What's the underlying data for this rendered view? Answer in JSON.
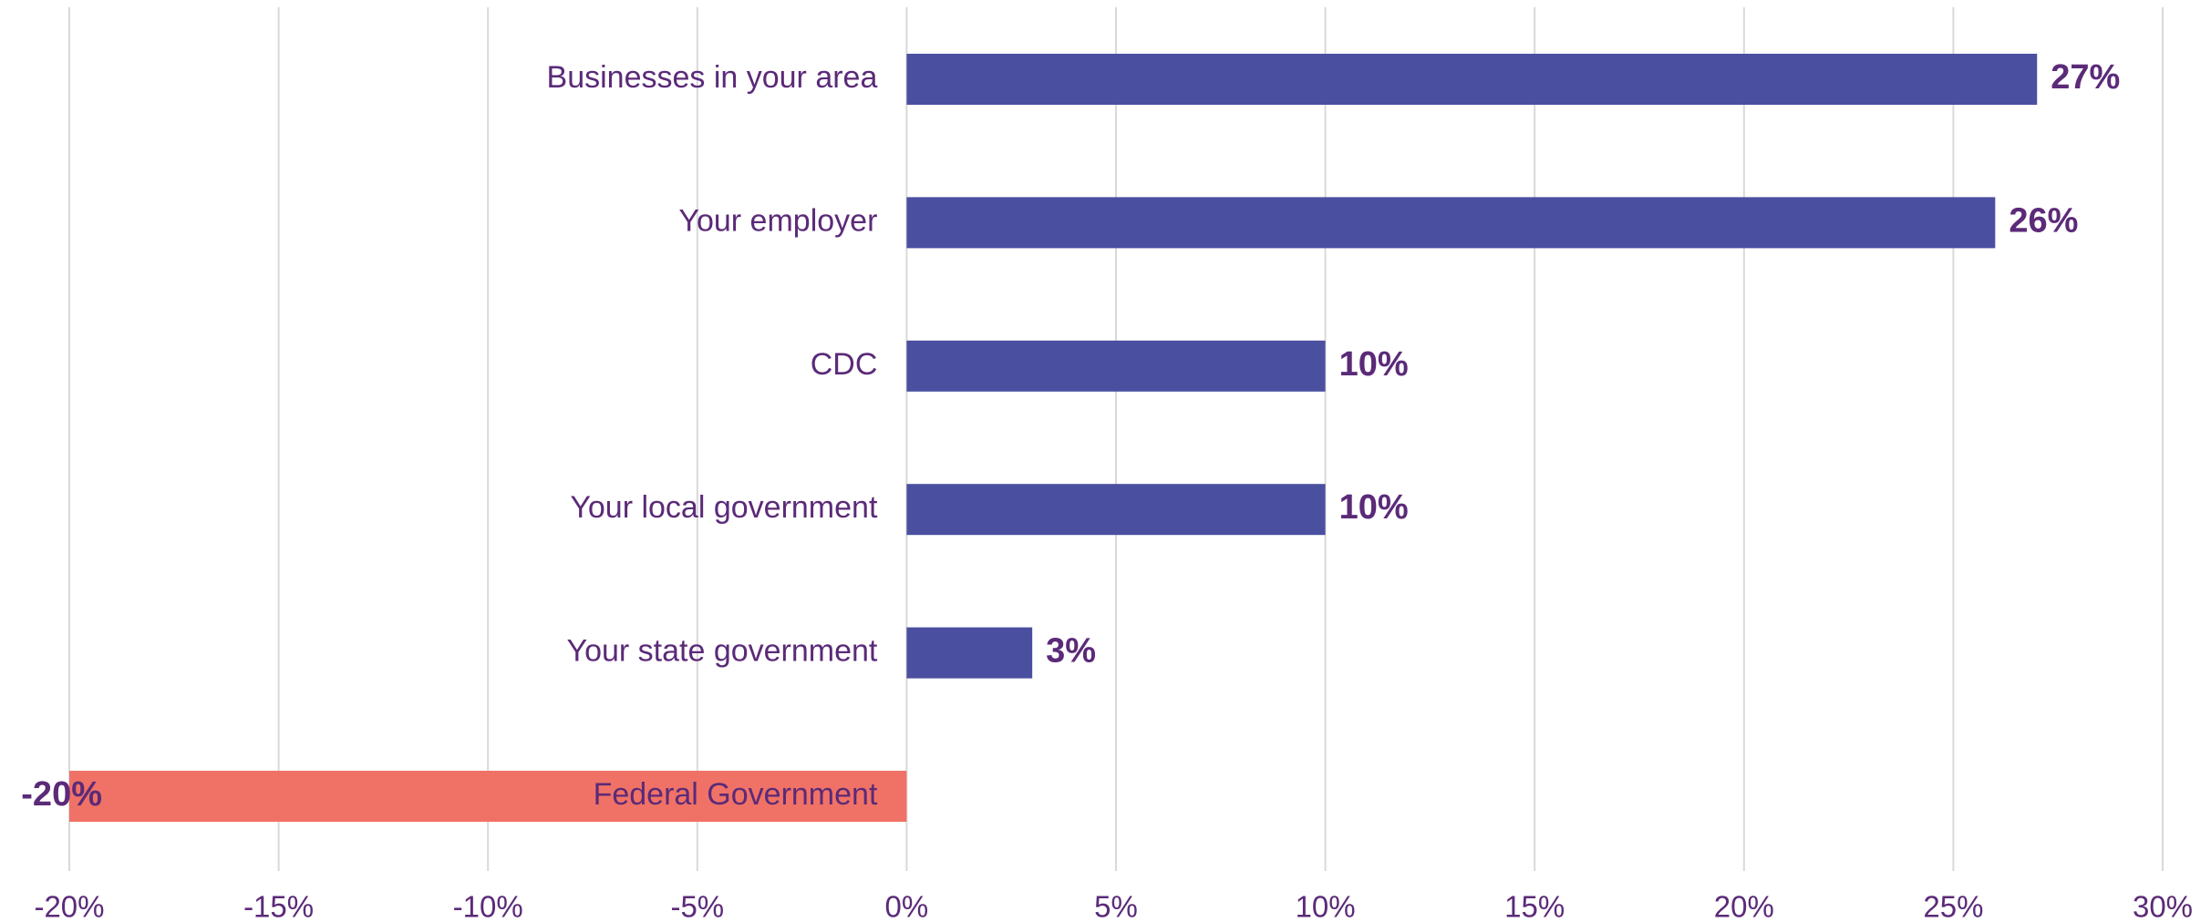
{
  "chart_data": {
    "type": "hbar",
    "categories": [
      "Businesses in your area",
      "Your employer",
      "CDC",
      "Your local government",
      "Your state government",
      "Federal Government"
    ],
    "values": [
      27,
      26,
      10,
      10,
      3,
      -20
    ],
    "value_labels": [
      "27%",
      "26%",
      "10%",
      "10%",
      "3%",
      "-20%"
    ],
    "colors": [
      "#4b4f9f",
      "#4b4f9f",
      "#4b4f9f",
      "#4b4f9f",
      "#4b4f9f",
      "#f07266"
    ],
    "xlim": [
      -20,
      30
    ],
    "xticks": [
      {
        "value": -20,
        "label": "-20%"
      },
      {
        "value": -15,
        "label": "-15%"
      },
      {
        "value": -10,
        "label": "-10%"
      },
      {
        "value": -5,
        "label": "-5%"
      },
      {
        "value": 0,
        "label": "0%"
      },
      {
        "value": 5,
        "label": "5%"
      },
      {
        "value": 10,
        "label": "10%"
      },
      {
        "value": 15,
        "label": "15%"
      },
      {
        "value": 20,
        "label": "20%"
      },
      {
        "value": 25,
        "label": "25%"
      },
      {
        "value": 30,
        "label": "30%"
      }
    ],
    "grid": true
  }
}
